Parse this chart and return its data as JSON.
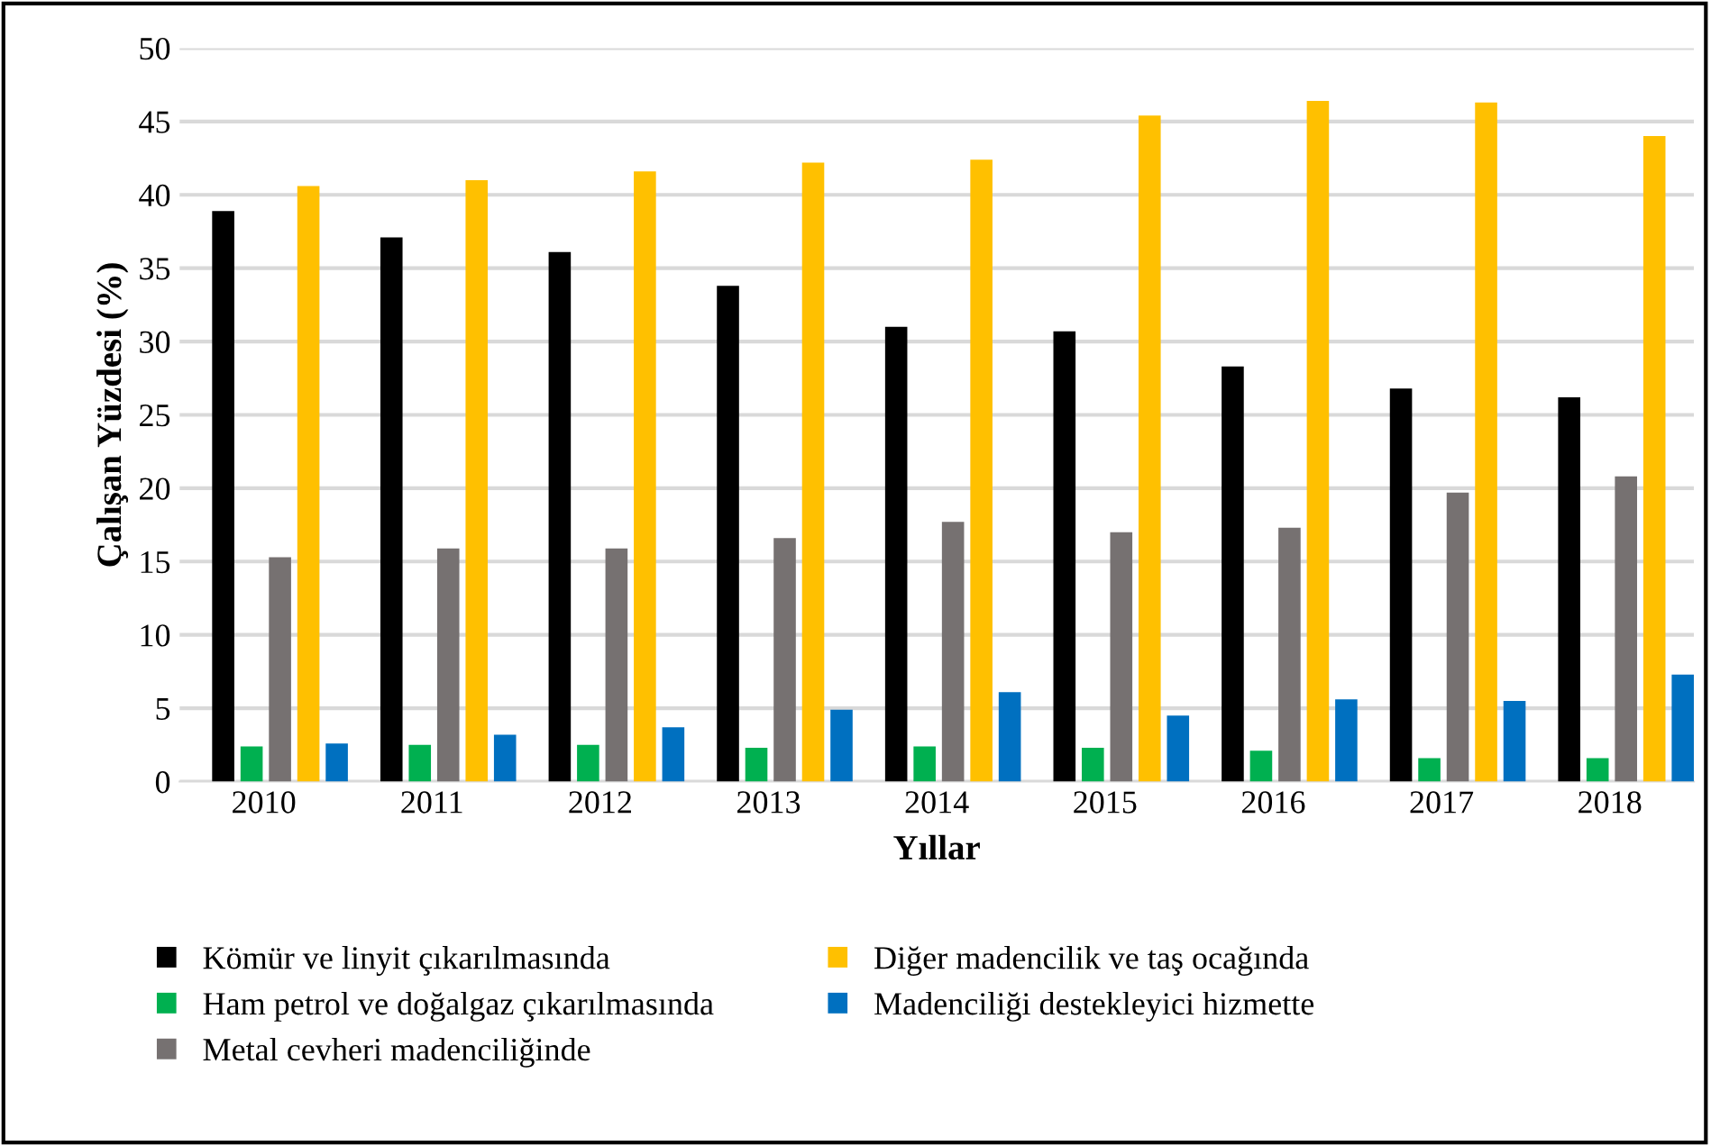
{
  "chart_data": {
    "type": "bar",
    "xlabel": "Yıllar",
    "ylabel": "Çalışan Yüzdesi (%)",
    "categories": [
      "2010",
      "2011",
      "2012",
      "2013",
      "2014",
      "2015",
      "2016",
      "2017",
      "2018"
    ],
    "series": [
      {
        "name": "Kömür ve linyit çıkarılmasında",
        "color": "#000000",
        "values": [
          38.9,
          37.1,
          36.1,
          33.8,
          31.0,
          30.7,
          28.3,
          26.8,
          26.2
        ]
      },
      {
        "name": "Ham petrol ve doğalgaz çıkarılmasında",
        "color": "#00b050",
        "values": [
          2.4,
          2.5,
          2.5,
          2.3,
          2.4,
          2.3,
          2.1,
          1.6,
          1.6
        ]
      },
      {
        "name": "Metal cevheri madenciliğinde",
        "color": "#767171",
        "values": [
          15.3,
          15.9,
          15.9,
          16.6,
          17.7,
          17.0,
          17.3,
          19.7,
          20.8
        ]
      },
      {
        "name": "Diğer madencilik ve taş ocağında",
        "color": "#ffc000",
        "values": [
          40.6,
          41.0,
          41.6,
          42.2,
          42.4,
          45.4,
          46.4,
          46.3,
          44.0
        ]
      },
      {
        "name": "Madenciliği destekleyici hizmette",
        "color": "#0070c0",
        "values": [
          2.6,
          3.2,
          3.7,
          4.9,
          6.1,
          4.5,
          5.6,
          5.5,
          7.3
        ]
      }
    ],
    "ylim": [
      0,
      50
    ],
    "yticks": [
      0,
      5,
      10,
      15,
      20,
      25,
      30,
      35,
      40,
      45,
      50
    ],
    "grid": "y",
    "legend": "bottom"
  }
}
